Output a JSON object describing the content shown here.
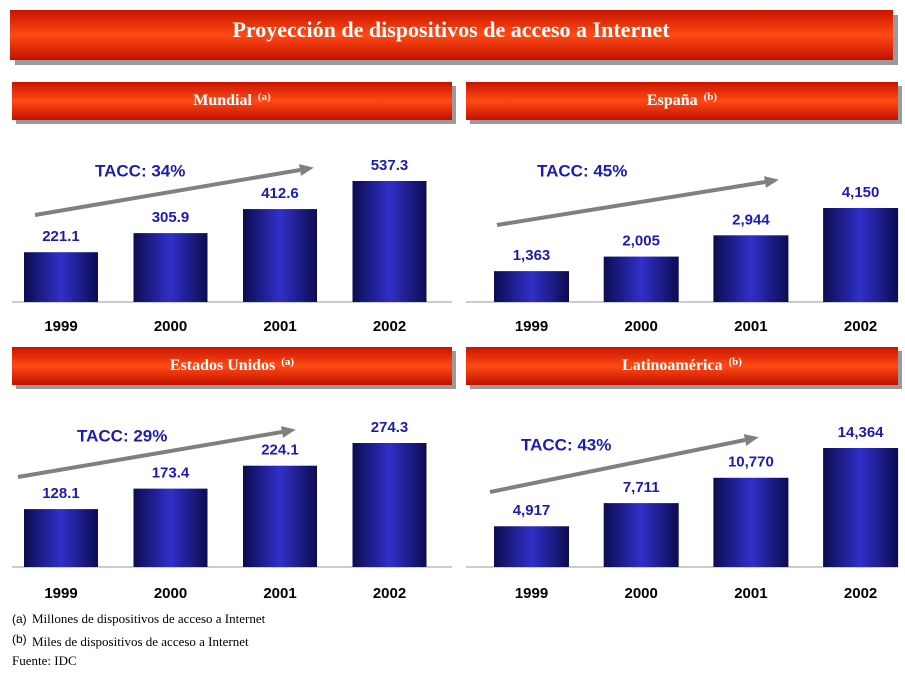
{
  "title": "Proyección de dispositivos de acceso a Internet",
  "chart_data": [
    {
      "type": "bar",
      "title": "Mundial",
      "title_note": "(a)",
      "annotation": "TACC: 34%",
      "color": "#3030c8",
      "categories": [
        "1999",
        "2000",
        "2001",
        "2002"
      ],
      "values": [
        221.1,
        305.9,
        412.6,
        537.3
      ]
    },
    {
      "type": "bar",
      "title": "España",
      "title_note": "(b)",
      "annotation": "TACC: 45%",
      "color": "#3030c8",
      "categories": [
        "1999",
        "2000",
        "2001",
        "2002"
      ],
      "values": [
        1363,
        2005,
        2944,
        4150
      ],
      "value_labels": [
        "1,363",
        "2,005",
        "2,944",
        "4,150"
      ]
    },
    {
      "type": "bar",
      "title": "Estados Unidos",
      "title_note": "(a)",
      "annotation": "TACC: 29%",
      "color": "#3030c8",
      "categories": [
        "1999",
        "2000",
        "2001",
        "2002"
      ],
      "values": [
        128.1,
        173.4,
        224.1,
        274.3
      ]
    },
    {
      "type": "bar",
      "title": "Latinoamérica",
      "title_note": "(b)",
      "annotation": "TACC: 43%",
      "color": "#3030c8",
      "categories": [
        "1999",
        "2000",
        "2001",
        "2002"
      ],
      "values": [
        4917,
        7711,
        10770,
        14364
      ],
      "value_labels": [
        "4,917",
        "7,711",
        "10,770",
        "14,364"
      ]
    }
  ],
  "footnotes": [
    {
      "marker": "(a)",
      "text": "Millones de dispositivos de acceso a Internet"
    },
    {
      "marker": "(b)",
      "text": "Miles de dispositivos de acceso a Internet"
    }
  ],
  "source": "Fuente: IDC"
}
